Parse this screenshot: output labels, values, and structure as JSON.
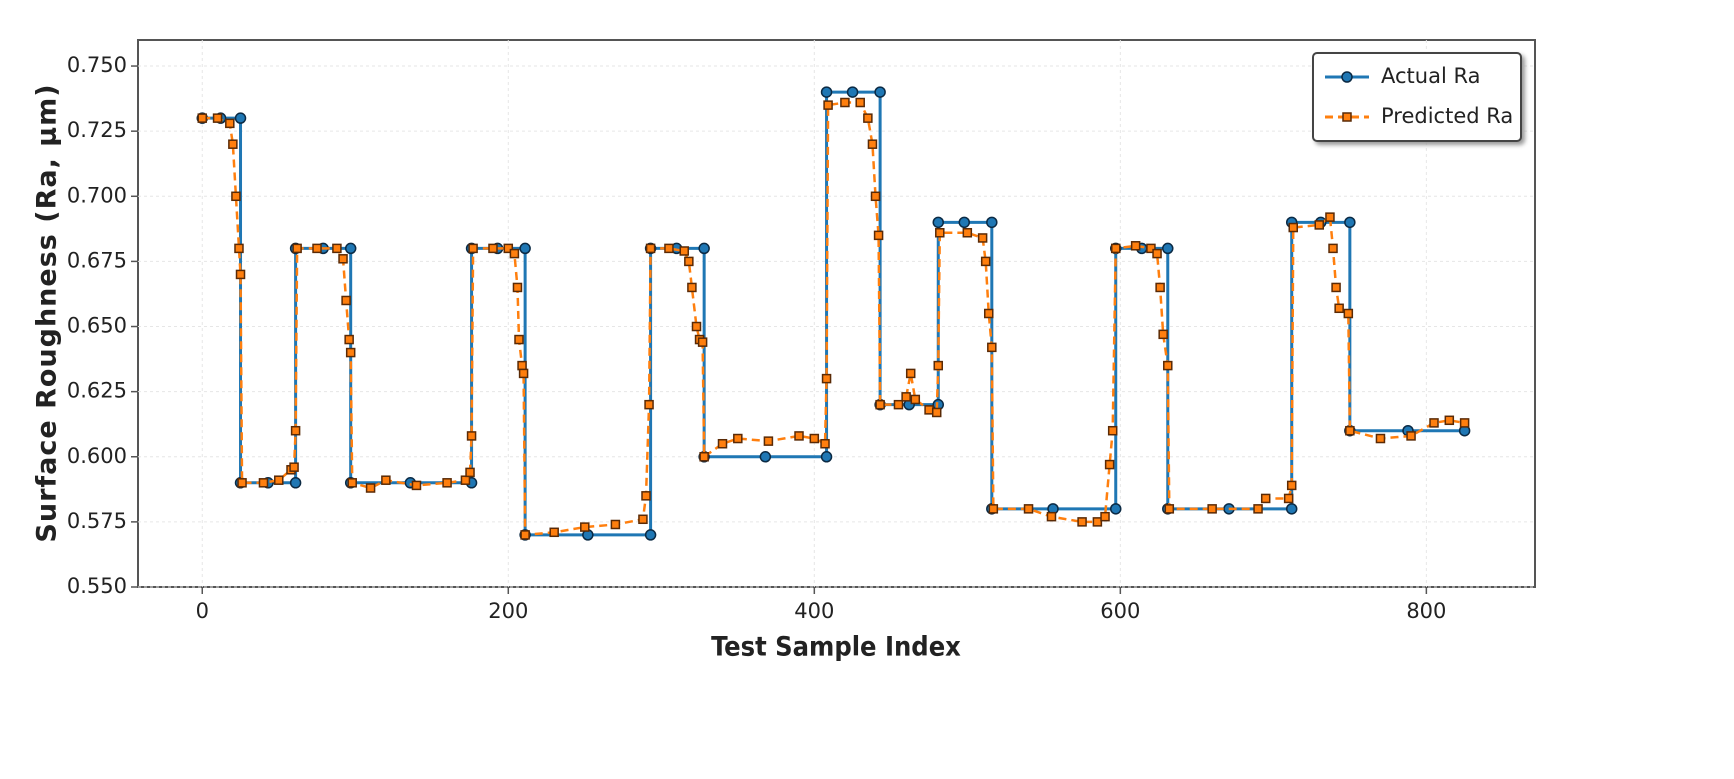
{
  "chart_data": {
    "type": "line",
    "xlabel": "Test Sample Index",
    "ylabel": "Surface Roughness (Ra, µm)",
    "xlim": [
      -42,
      871
    ],
    "ylim": [
      0.55,
      0.76
    ],
    "xticks": [
      0,
      200,
      400,
      600,
      800
    ],
    "yticks": [
      {
        "value": 0.55,
        "label": "0.550"
      },
      {
        "value": 0.575,
        "label": "0.575"
      },
      {
        "value": 0.6,
        "label": "0.600"
      },
      {
        "value": 0.625,
        "label": "0.625"
      },
      {
        "value": 0.65,
        "label": "0.650"
      },
      {
        "value": 0.675,
        "label": "0.675"
      },
      {
        "value": 0.7,
        "label": "0.700"
      },
      {
        "value": 0.725,
        "label": "0.725"
      },
      {
        "value": 0.75,
        "label": "0.750"
      }
    ],
    "grid": true,
    "legend": "upper right",
    "series": [
      {
        "name": "Actual Ra",
        "color": "#1f77b4",
        "marker": "circle",
        "x": [
          0,
          12,
          25,
          25,
          43,
          61,
          61,
          79,
          97,
          97,
          136,
          176,
          176,
          193,
          211,
          211,
          252,
          293,
          293,
          310,
          328,
          328,
          368,
          408,
          408,
          425,
          443,
          443,
          462,
          481,
          481,
          498,
          516,
          516,
          556,
          597,
          597,
          614,
          631,
          631,
          671,
          712,
          712,
          731,
          750,
          750,
          788,
          825
        ],
        "values": [
          0.73,
          0.73,
          0.73,
          0.59,
          0.59,
          0.59,
          0.68,
          0.68,
          0.68,
          0.59,
          0.59,
          0.59,
          0.68,
          0.68,
          0.68,
          0.57,
          0.57,
          0.57,
          0.68,
          0.68,
          0.68,
          0.6,
          0.6,
          0.6,
          0.74,
          0.74,
          0.74,
          0.62,
          0.62,
          0.62,
          0.69,
          0.69,
          0.69,
          0.58,
          0.58,
          0.58,
          0.68,
          0.68,
          0.68,
          0.58,
          0.58,
          0.58,
          0.69,
          0.69,
          0.69,
          0.61,
          0.61,
          0.61
        ]
      },
      {
        "name": "Predicted Ra",
        "color": "#ff7f0e",
        "marker": "square",
        "x": [
          0,
          10,
          18,
          20,
          22,
          24,
          25,
          26,
          40,
          50,
          58,
          60,
          61,
          62,
          75,
          88,
          92,
          94,
          96,
          97,
          98,
          110,
          120,
          140,
          160,
          172,
          175,
          176,
          177,
          190,
          200,
          204,
          206,
          207,
          209,
          210,
          211,
          230,
          250,
          270,
          288,
          290,
          292,
          293,
          305,
          315,
          318,
          320,
          323,
          325,
          327,
          328,
          340,
          350,
          370,
          390,
          400,
          407,
          408,
          409,
          420,
          430,
          435,
          438,
          440,
          442,
          443,
          455,
          460,
          463,
          466,
          475,
          480,
          481,
          482,
          500,
          510,
          512,
          514,
          516,
          517,
          540,
          555,
          575,
          585,
          590,
          593,
          595,
          597,
          610,
          620,
          624,
          626,
          628,
          631,
          632,
          660,
          690,
          695,
          710,
          712,
          713,
          730,
          737,
          739,
          741,
          743,
          749,
          750,
          770,
          790,
          805,
          815,
          825
        ],
        "values": [
          0.73,
          0.73,
          0.728,
          0.72,
          0.7,
          0.68,
          0.67,
          0.59,
          0.59,
          0.591,
          0.595,
          0.596,
          0.61,
          0.68,
          0.68,
          0.68,
          0.676,
          0.66,
          0.645,
          0.64,
          0.59,
          0.588,
          0.591,
          0.589,
          0.59,
          0.591,
          0.594,
          0.608,
          0.68,
          0.68,
          0.68,
          0.678,
          0.665,
          0.645,
          0.635,
          0.632,
          0.57,
          0.571,
          0.573,
          0.574,
          0.576,
          0.585,
          0.62,
          0.68,
          0.68,
          0.679,
          0.675,
          0.665,
          0.65,
          0.645,
          0.644,
          0.6,
          0.605,
          0.607,
          0.606,
          0.608,
          0.607,
          0.605,
          0.63,
          0.735,
          0.736,
          0.736,
          0.73,
          0.72,
          0.7,
          0.685,
          0.62,
          0.62,
          0.623,
          0.632,
          0.622,
          0.618,
          0.617,
          0.635,
          0.686,
          0.686,
          0.684,
          0.675,
          0.655,
          0.642,
          0.58,
          0.58,
          0.577,
          0.575,
          0.575,
          0.577,
          0.597,
          0.61,
          0.68,
          0.681,
          0.68,
          0.678,
          0.665,
          0.647,
          0.635,
          0.58,
          0.58,
          0.58,
          0.584,
          0.584,
          0.589,
          0.688,
          0.689,
          0.692,
          0.68,
          0.665,
          0.657,
          0.655,
          0.61,
          0.607,
          0.608,
          0.613,
          0.614,
          0.613
        ]
      }
    ]
  }
}
